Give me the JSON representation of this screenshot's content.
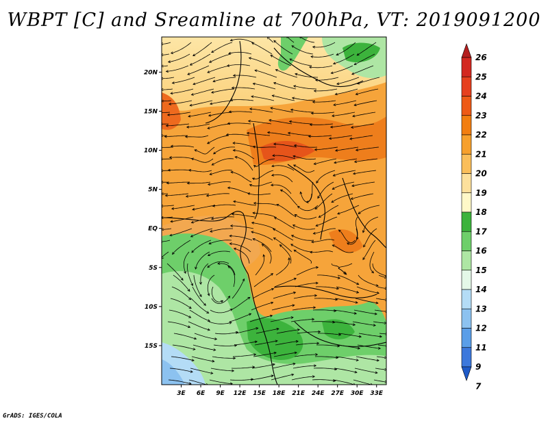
{
  "title": "WBPT [C] and Sreamline at 700hPa, VT: 2019091200",
  "credit": "GrADS: IGES/COLA",
  "map": {
    "lon_range": [
      0,
      34.5
    ],
    "lat_range": [
      -20,
      24.5
    ],
    "x_ticks": [
      {
        "lon": 3,
        "label": "3E"
      },
      {
        "lon": 6,
        "label": "6E"
      },
      {
        "lon": 9,
        "label": "9E"
      },
      {
        "lon": 12,
        "label": "12E"
      },
      {
        "lon": 15,
        "label": "15E"
      },
      {
        "lon": 18,
        "label": "18E"
      },
      {
        "lon": 21,
        "label": "21E"
      },
      {
        "lon": 24,
        "label": "24E"
      },
      {
        "lon": 27,
        "label": "27E"
      },
      {
        "lon": 30,
        "label": "30E"
      },
      {
        "lon": 33,
        "label": "33E"
      }
    ],
    "y_ticks": [
      {
        "lat": 20,
        "label": "20N"
      },
      {
        "lat": 15,
        "label": "15N"
      },
      {
        "lat": 10,
        "label": "10N"
      },
      {
        "lat": 5,
        "label": "5N"
      },
      {
        "lat": 0,
        "label": "EQ"
      },
      {
        "lat": -5,
        "label": "5S"
      },
      {
        "lat": -10,
        "label": "10S"
      },
      {
        "lat": -15,
        "label": "15S"
      }
    ]
  },
  "colorbar": {
    "levels": [
      "26",
      "25",
      "24",
      "23",
      "22",
      "21",
      "20",
      "19",
      "18",
      "17",
      "16",
      "15",
      "14",
      "13",
      "12",
      "11",
      "9",
      "7"
    ],
    "colors": [
      "#b41e1e",
      "#d32820",
      "#e6401e",
      "#ee5a16",
      "#f27e10",
      "#f7a02c",
      "#fabe5a",
      "#fde09c",
      "#fff8c8",
      "#3cb33c",
      "#6ecf6a",
      "#aee6a4",
      "#e4f8e8",
      "#b4dcf6",
      "#8cc2f0",
      "#5a9ee8",
      "#3c78dc",
      "#1e5ac8"
    ]
  }
}
